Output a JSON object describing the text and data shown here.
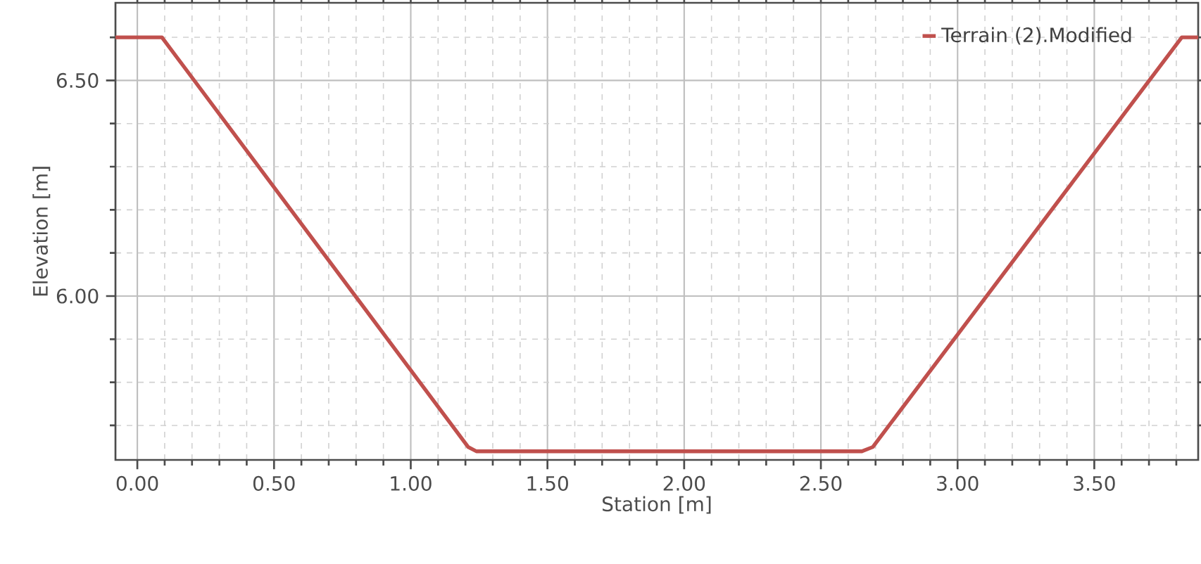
{
  "chart_data": {
    "type": "line",
    "xlabel": "Station [m]",
    "ylabel": "Elevation [m]",
    "x": [
      -0.08,
      0.09,
      1.21,
      1.24,
      2.65,
      2.69,
      3.82,
      3.88
    ],
    "series": [
      {
        "name": "Terrain (2).Modified",
        "color": "#c0504d",
        "values": [
          6.6,
          6.6,
          5.65,
          5.64,
          5.64,
          5.65,
          6.6,
          6.6
        ]
      }
    ],
    "xlim": [
      -0.08,
      3.88
    ],
    "ylim": [
      5.62,
      6.68
    ],
    "xticks": [
      {
        "value": 0,
        "label": "0.00"
      },
      {
        "value": 0.5,
        "label": "0.50"
      },
      {
        "value": 1,
        "label": "1.00"
      },
      {
        "value": 1.5,
        "label": "1.50"
      },
      {
        "value": 2,
        "label": "2.00"
      },
      {
        "value": 2.5,
        "label": "2.50"
      },
      {
        "value": 3,
        "label": "3.00"
      },
      {
        "value": 3.5,
        "label": "3.50"
      },
      {
        "value": 0.1,
        "label": null
      },
      {
        "value": 0.2,
        "label": null
      },
      {
        "value": 0.3,
        "label": null
      },
      {
        "value": 0.4,
        "label": null
      },
      {
        "value": 0.6,
        "label": null
      },
      {
        "value": 0.7,
        "label": null
      },
      {
        "value": 0.8,
        "label": null
      },
      {
        "value": 0.9,
        "label": null
      },
      {
        "value": 1.1,
        "label": null
      },
      {
        "value": 1.2,
        "label": null
      },
      {
        "value": 1.3,
        "label": null
      },
      {
        "value": 1.4,
        "label": null
      },
      {
        "value": 1.6,
        "label": null
      },
      {
        "value": 1.7,
        "label": null
      },
      {
        "value": 1.8,
        "label": null
      },
      {
        "value": 1.9,
        "label": null
      },
      {
        "value": 2.1,
        "label": null
      },
      {
        "value": 2.2,
        "label": null
      },
      {
        "value": 2.3,
        "label": null
      },
      {
        "value": 2.4,
        "label": null
      },
      {
        "value": 2.6,
        "label": null
      },
      {
        "value": 2.7,
        "label": null
      },
      {
        "value": 2.8,
        "label": null
      },
      {
        "value": 2.9,
        "label": null
      },
      {
        "value": 3.1,
        "label": null
      },
      {
        "value": 3.2,
        "label": null
      },
      {
        "value": 3.3,
        "label": null
      },
      {
        "value": 3.4,
        "label": null
      },
      {
        "value": 3.6,
        "label": null
      },
      {
        "value": 3.7,
        "label": null
      },
      {
        "value": 3.8,
        "label": null
      }
    ],
    "yticks": [
      {
        "value": 6.0,
        "label": "6.00"
      },
      {
        "value": 6.5,
        "label": "6.50"
      },
      {
        "value": 5.7,
        "label": null
      },
      {
        "value": 5.8,
        "label": null
      },
      {
        "value": 5.9,
        "label": null
      },
      {
        "value": 6.1,
        "label": null
      },
      {
        "value": 6.2,
        "label": null
      },
      {
        "value": 6.3,
        "label": null
      },
      {
        "value": 6.4,
        "label": null
      },
      {
        "value": 6.6,
        "label": null
      }
    ],
    "grid": true,
    "legend": "top right",
    "marker": "none",
    "line_style": "solid"
  }
}
